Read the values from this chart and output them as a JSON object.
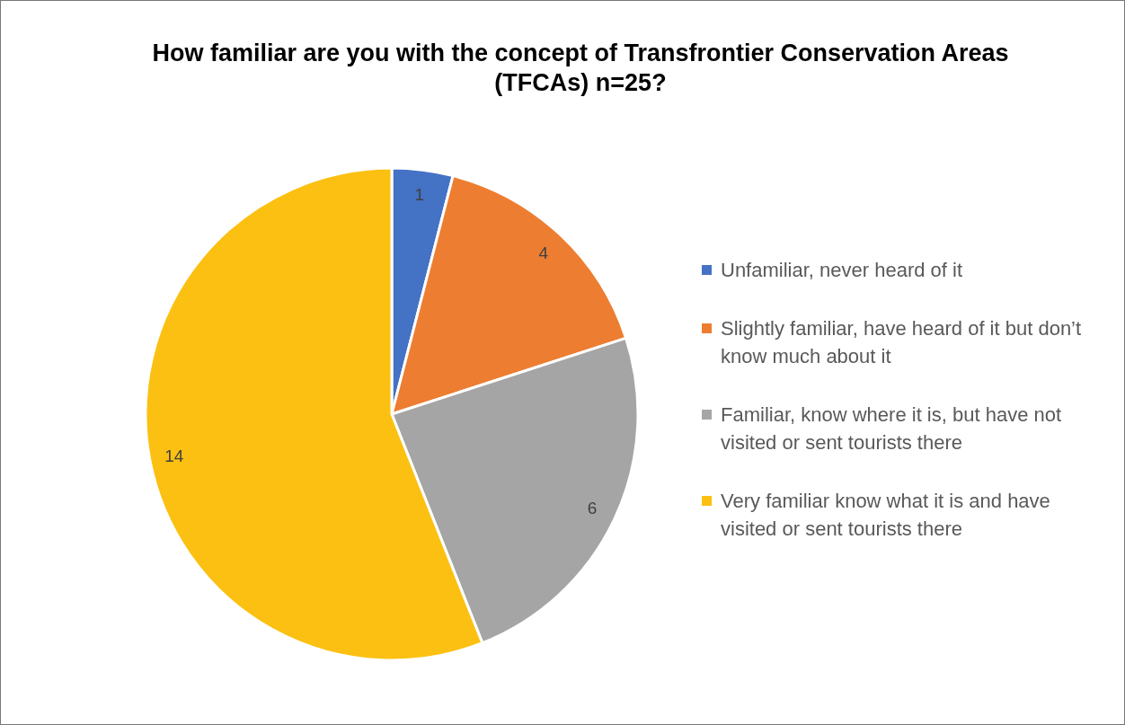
{
  "chart_data": {
    "type": "pie",
    "title": "How familiar are you with the concept of Transfrontier Conservation Areas (TFCAs) n=25?",
    "categories": [
      "Unfamiliar, never heard of it",
      "Slightly familiar, have heard of it but don’t know much about it",
      "Familiar, know where it is, but have not visited or sent tourists there",
      "Very familiar know what it is and have visited or sent tourists there"
    ],
    "values": [
      1,
      4,
      6,
      14
    ],
    "colors": [
      "#4472c4",
      "#ed7d31",
      "#a5a5a5",
      "#fbc011"
    ],
    "data_labels": true,
    "legend": "right"
  }
}
